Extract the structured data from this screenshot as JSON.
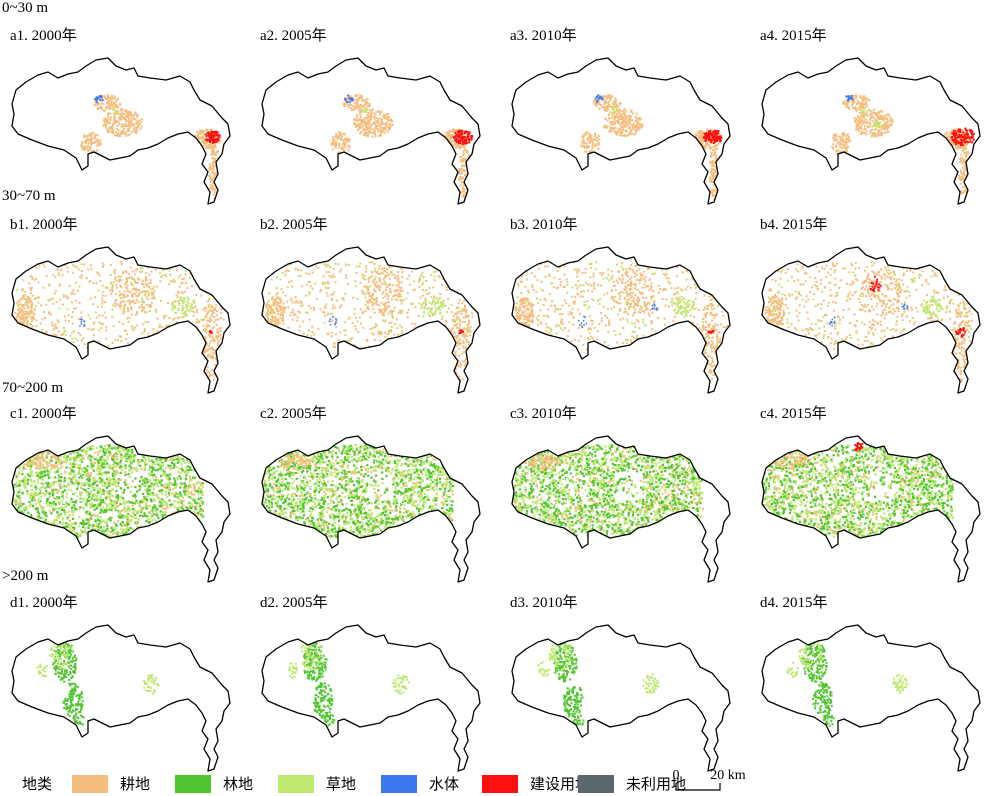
{
  "rows": [
    {
      "label": "0~30 m",
      "pattern": "low",
      "panels": [
        {
          "title": "a1. 2000年",
          "urban": 1.0
        },
        {
          "title": "a2. 2005年",
          "urban": 1.2
        },
        {
          "title": "a3. 2010年",
          "urban": 1.2
        },
        {
          "title": "a4. 2015年",
          "urban": 1.5
        }
      ]
    },
    {
      "label": "30~70 m",
      "pattern": "mid",
      "panels": [
        {
          "title": "b1. 2000年",
          "urban": 0.3
        },
        {
          "title": "b2. 2005年",
          "urban": 0.4
        },
        {
          "title": "b3. 2010年",
          "urban": 0.5
        },
        {
          "title": "b4. 2015年",
          "urban": 1.0
        }
      ]
    },
    {
      "label": "70~200 m",
      "pattern": "hill",
      "panels": [
        {
          "title": "c1. 2000年",
          "urban": 0
        },
        {
          "title": "c2. 2005年",
          "urban": 0
        },
        {
          "title": "c3. 2010年",
          "urban": 0
        },
        {
          "title": "c4. 2015年",
          "urban": 1.0
        }
      ]
    },
    {
      "label": ">200 m",
      "pattern": "high",
      "panels": [
        {
          "title": "d1. 2000年",
          "urban": 0
        },
        {
          "title": "d2. 2005年",
          "urban": 0
        },
        {
          "title": "d3. 2010年",
          "urban": 0
        },
        {
          "title": "d4. 2015年",
          "urban": 0
        }
      ]
    }
  ],
  "legend": {
    "title": "地类",
    "items": [
      {
        "label": "耕地",
        "color": "#F5BE7E"
      },
      {
        "label": "林地",
        "color": "#4FC62F"
      },
      {
        "label": "草地",
        "color": "#BFE871"
      },
      {
        "label": "水体",
        "color": "#3C78F0"
      },
      {
        "label": "建设用地",
        "color": "#FF1010"
      },
      {
        "label": "未利用地",
        "color": "#5A686E"
      }
    ]
  },
  "scalebar": {
    "start": "0",
    "end": "20 km"
  }
}
